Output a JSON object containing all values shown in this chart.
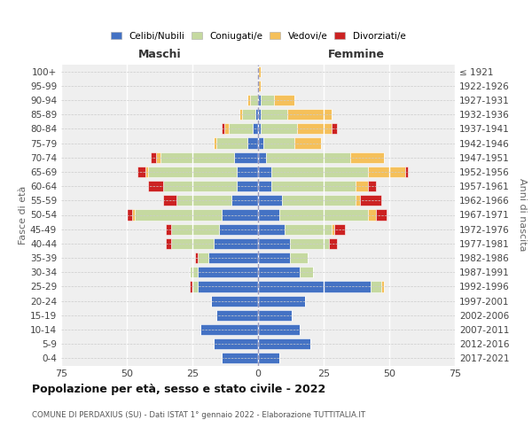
{
  "age_groups": [
    "0-4",
    "5-9",
    "10-14",
    "15-19",
    "20-24",
    "25-29",
    "30-34",
    "35-39",
    "40-44",
    "45-49",
    "50-54",
    "55-59",
    "60-64",
    "65-69",
    "70-74",
    "75-79",
    "80-84",
    "85-89",
    "90-94",
    "95-99",
    "100+"
  ],
  "birth_years": [
    "2017-2021",
    "2012-2016",
    "2007-2011",
    "2002-2006",
    "1997-2001",
    "1992-1996",
    "1987-1991",
    "1982-1986",
    "1977-1981",
    "1972-1976",
    "1967-1971",
    "1962-1966",
    "1957-1961",
    "1952-1956",
    "1947-1951",
    "1942-1946",
    "1937-1941",
    "1932-1936",
    "1927-1931",
    "1922-1926",
    "≤ 1921"
  ],
  "maschi": {
    "celibe": [
      14,
      17,
      22,
      16,
      18,
      23,
      23,
      19,
      17,
      15,
      14,
      10,
      8,
      8,
      9,
      4,
      2,
      1,
      0,
      0,
      0
    ],
    "coniugato": [
      0,
      0,
      0,
      0,
      0,
      2,
      3,
      4,
      16,
      18,
      33,
      21,
      28,
      34,
      28,
      12,
      9,
      5,
      3,
      0,
      0
    ],
    "vedovo": [
      0,
      0,
      0,
      0,
      0,
      0,
      0,
      0,
      0,
      0,
      1,
      0,
      0,
      1,
      2,
      1,
      2,
      1,
      1,
      0,
      0
    ],
    "divorziato": [
      0,
      0,
      0,
      0,
      0,
      1,
      0,
      1,
      2,
      2,
      2,
      5,
      6,
      3,
      2,
      0,
      1,
      0,
      0,
      0,
      0
    ]
  },
  "femmine": {
    "nubile": [
      8,
      20,
      16,
      13,
      18,
      43,
      16,
      12,
      12,
      10,
      8,
      9,
      5,
      5,
      3,
      2,
      1,
      1,
      1,
      0,
      0
    ],
    "coniugata": [
      0,
      0,
      0,
      0,
      0,
      4,
      5,
      7,
      15,
      18,
      34,
      28,
      32,
      37,
      32,
      12,
      14,
      10,
      5,
      0,
      0
    ],
    "vedova": [
      0,
      0,
      0,
      0,
      0,
      1,
      0,
      0,
      0,
      1,
      3,
      2,
      5,
      14,
      13,
      10,
      13,
      17,
      8,
      1,
      1
    ],
    "divorziata": [
      0,
      0,
      0,
      0,
      0,
      0,
      0,
      0,
      3,
      4,
      4,
      8,
      3,
      1,
      0,
      0,
      2,
      0,
      0,
      0,
      0
    ]
  },
  "colors": {
    "celibe": "#4472c4",
    "coniugato": "#c5d9a0",
    "vedovo": "#f5c05a",
    "divorziato": "#cc2222"
  },
  "xlim": 75,
  "title": "Popolazione per età, sesso e stato civile - 2022",
  "subtitle": "COMUNE DI PERDAXIUS (SU) - Dati ISTAT 1° gennaio 2022 - Elaborazione TUTTITALIA.IT",
  "ylabel_left": "Fasce di età",
  "ylabel_right": "Anni di nascita",
  "legend_labels": [
    "Celibi/Nubili",
    "Coniugati/e",
    "Vedovi/e",
    "Divorziati/e"
  ],
  "maschi_label": "Maschi",
  "femmine_label": "Femmine",
  "bg_color": "#efefef"
}
